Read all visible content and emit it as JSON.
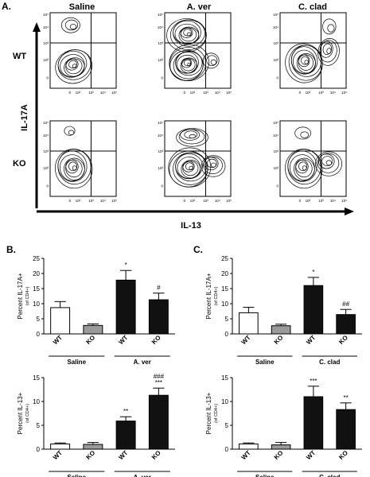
{
  "figure": {
    "panel_a_letter": "A.",
    "panel_b_letter": "B.",
    "panel_c_letter": "C.",
    "flow": {
      "columns": [
        "Saline",
        "A. ver",
        "C. clad"
      ],
      "rows": [
        "WT",
        "KO"
      ],
      "y_axis_label": "IL-17A",
      "x_axis_label": "IL-13",
      "y_ticks": [
        "10⁵",
        "10⁴",
        "10³",
        "10²",
        "0"
      ],
      "x_ticks": [
        "0",
        "10²",
        "10³",
        "10⁴",
        "10⁵"
      ]
    }
  },
  "chart_data": [
    {
      "type": "bar",
      "panel": "B",
      "ylabel": "Percent IL-17A+",
      "ylabel_sub": "(of CD4+)",
      "ylim": [
        0,
        25
      ],
      "yticks": [
        0,
        5,
        10,
        15,
        20,
        25
      ],
      "categories": [
        "WT",
        "KO",
        "WT",
        "KO"
      ],
      "groups": [
        {
          "label": "Saline",
          "span": [
            0,
            1
          ]
        },
        {
          "label": "A. ver",
          "span": [
            2,
            3
          ]
        }
      ],
      "values": [
        8.7,
        2.8,
        17.8,
        11.3
      ],
      "errors": [
        2.0,
        0.5,
        3.2,
        2.2
      ],
      "fills": [
        "#ffffff",
        "#9a9a9a",
        "#111111",
        "#111111"
      ],
      "annotations": [
        "",
        "",
        "*",
        "#"
      ]
    },
    {
      "type": "bar",
      "panel": "B",
      "ylabel": "Percent IL-13+",
      "ylabel_sub": "(of CD4+)",
      "ylim": [
        0,
        15
      ],
      "yticks": [
        0,
        5,
        10,
        15
      ],
      "categories": [
        "WT",
        "KO",
        "WT",
        "KO"
      ],
      "groups": [
        {
          "label": "Saline",
          "span": [
            0,
            1
          ]
        },
        {
          "label": "A. ver",
          "span": [
            2,
            3
          ]
        }
      ],
      "values": [
        1.1,
        1.0,
        5.9,
        11.3
      ],
      "errors": [
        0.2,
        0.4,
        0.9,
        1.5
      ],
      "fills": [
        "#ffffff",
        "#9a9a9a",
        "#111111",
        "#111111"
      ],
      "annotations": [
        "",
        "",
        "**",
        "###\n***"
      ]
    },
    {
      "type": "bar",
      "panel": "C",
      "ylabel": "Percent IL-17A+",
      "ylabel_sub": "(of CD4+)",
      "ylim": [
        0,
        25
      ],
      "yticks": [
        0,
        5,
        10,
        15,
        20,
        25
      ],
      "categories": [
        "WT",
        "KO",
        "WT",
        "KO"
      ],
      "groups": [
        {
          "label": "Saline",
          "span": [
            0,
            1
          ]
        },
        {
          "label": "C. clad",
          "span": [
            2,
            3
          ]
        }
      ],
      "values": [
        7.0,
        2.7,
        16.0,
        6.4
      ],
      "errors": [
        1.8,
        0.5,
        2.7,
        1.7
      ],
      "fills": [
        "#ffffff",
        "#9a9a9a",
        "#111111",
        "#111111"
      ],
      "annotations": [
        "",
        "",
        "*",
        "##"
      ]
    },
    {
      "type": "bar",
      "panel": "C",
      "ylabel": "Percent IL-13+",
      "ylabel_sub": "(of CD4+)",
      "ylim": [
        0,
        15
      ],
      "yticks": [
        0,
        5,
        10,
        15
      ],
      "categories": [
        "WT",
        "KO",
        "WT",
        "KO"
      ],
      "groups": [
        {
          "label": "Saline",
          "span": [
            0,
            1
          ]
        },
        {
          "label": "C. clad",
          "span": [
            2,
            3
          ]
        }
      ],
      "values": [
        1.1,
        0.9,
        11.0,
        8.3
      ],
      "errors": [
        0.2,
        0.5,
        2.2,
        1.4
      ],
      "fills": [
        "#ffffff",
        "#9a9a9a",
        "#111111",
        "#111111"
      ],
      "annotations": [
        "",
        "",
        "***",
        "**"
      ]
    }
  ]
}
